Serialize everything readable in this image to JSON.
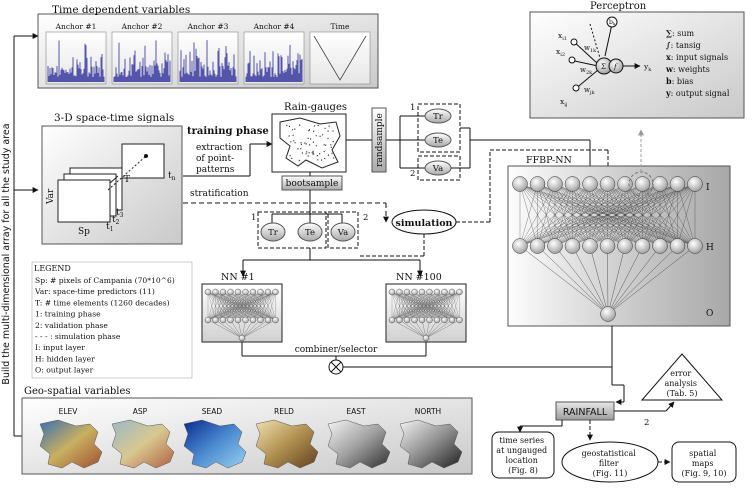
{
  "side_label": "Build the multi-dimensional array for all the study area",
  "time_dependent": {
    "title": "Time dependent variables",
    "charts": [
      {
        "title": "Anchor #1",
        "icon": "noisy-signal-chart"
      },
      {
        "title": "Anchor #2",
        "icon": "noisy-signal-chart"
      },
      {
        "title": "Anchor #3",
        "icon": "noisy-signal-chart"
      },
      {
        "title": "Anchor #4",
        "icon": "noisy-signal-chart"
      },
      {
        "title": "Time",
        "icon": "v-shape-chart"
      }
    ]
  },
  "space_time": {
    "title": "3-D space-time signals",
    "labels": {
      "var": "Var",
      "sp": "Sp",
      "t": "T",
      "tn": "t",
      "tn_sub": "n",
      "t1": "t",
      "t1_sub": "1",
      "t2": "t",
      "t2_sub": "2",
      "t3": "t",
      "t3_sub": "3"
    }
  },
  "phases": {
    "training": "training phase",
    "extraction": [
      "extraction",
      "of point-",
      "patterns"
    ],
    "stratification": "stratification"
  },
  "raingauges": {
    "title": "Rain-gauges",
    "bootsample": "bootsample",
    "randsample": "randsample"
  },
  "sets_top": {
    "tr": "Tr",
    "te": "Te",
    "va": "Va",
    "n1": "1",
    "n2": "2"
  },
  "sets_mid": {
    "tr": "Tr",
    "te": "Te",
    "va": "Va",
    "n1": "1",
    "n2": "2"
  },
  "simulation": "simulation",
  "nn1": "NN #1",
  "nn100": "NN #100",
  "combiner": "combiner/selector",
  "ffbp": {
    "title": "FFBP-NN",
    "i": "I",
    "h": "H",
    "o": "O"
  },
  "perceptron": {
    "title": "Perceptron",
    "node_labels": {
      "xi1": "x",
      "xi1_sub": "i1",
      "xi2": "x",
      "xi2_sub": "i2",
      "xij": "x",
      "xij_sub": "ij",
      "w1k": "w",
      "w1k_sub": "1k",
      "w2k": "w",
      "w2k_sub": "2k",
      "wjk": "w",
      "wjk_sub": "jk",
      "bk": "b",
      "bk_sub": "k",
      "yk": "y",
      "yk_sub": "k",
      "sum": "Σ",
      "f": "f"
    },
    "legend": [
      {
        "sym": "∑",
        "text": ": sum"
      },
      {
        "sym": "∫",
        "text": ": tansig"
      },
      {
        "sym": "x",
        "text": ": input signals"
      },
      {
        "sym": "w",
        "text": ": weights"
      },
      {
        "sym": "b",
        "text": ": bias"
      },
      {
        "sym": "y",
        "text": ": output signal"
      }
    ]
  },
  "legend": {
    "title": "LEGEND",
    "items": [
      "Sp: # pixels of Campania (70*10^6)",
      "Var: space-time predictors (11)",
      "T: # time elements (1260 decades)",
      "1: training phase",
      "2: validation phase",
      "- - - : simulation phase",
      "I: input layer",
      "H: hidden layer",
      "O: output layer"
    ]
  },
  "geo": {
    "title": "Geo-spatial variables",
    "maps": [
      {
        "title": "ELEV",
        "icon": "elevation-map",
        "colors": [
          "#3a6fb0",
          "#c8b060",
          "#a05030"
        ]
      },
      {
        "title": "ASP",
        "icon": "aspect-map",
        "colors": [
          "#9ab8c8",
          "#d8c890",
          "#b06040"
        ]
      },
      {
        "title": "SEAD",
        "icon": "sea-distance-map",
        "colors": [
          "#0a2a90",
          "#4a8ad0",
          "#9ad0f0"
        ]
      },
      {
        "title": "RELD",
        "icon": "relief-distance-map",
        "colors": [
          "#f0e0b0",
          "#b09050",
          "#604020"
        ]
      },
      {
        "title": "EAST",
        "icon": "easting-map",
        "colors": [
          "#f5f5f5",
          "#a0a0a0",
          "#303030"
        ]
      },
      {
        "title": "NORTH",
        "icon": "northing-map",
        "colors": [
          "#f5f5f5",
          "#909090",
          "#202020"
        ]
      }
    ]
  },
  "rainfall": "RAINFALL",
  "rain_edge_label": "2",
  "outputs": {
    "error": [
      "error",
      "analysis",
      "(Tab. 5)"
    ],
    "timeseries": [
      "time series",
      "at ungauged",
      "location",
      "(Fig. 8)"
    ],
    "geostat": [
      "geostatistical",
      "filter",
      "(Fig. 11)"
    ],
    "maps": [
      "spatial",
      "maps",
      "(Fig. 9, 10)"
    ]
  }
}
